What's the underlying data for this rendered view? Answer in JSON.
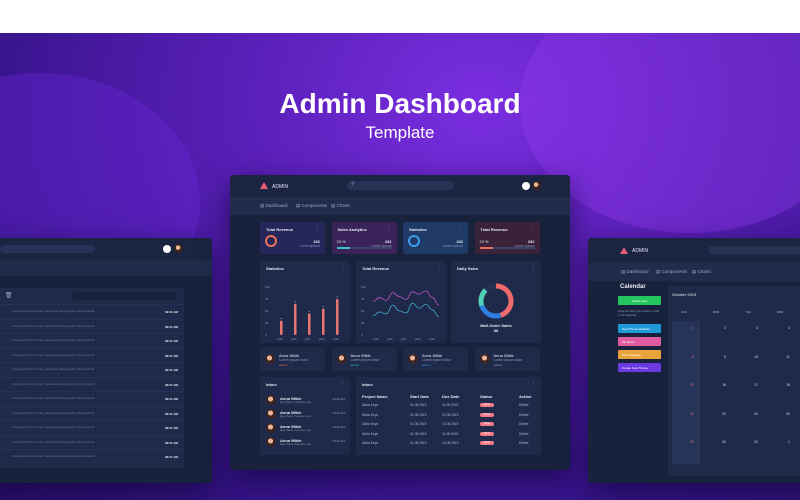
{
  "hero": {
    "title": "Admin Dashboard",
    "subtitle": "Template"
  },
  "app": {
    "logo": "ADMIN",
    "nav": [
      "Dashboard",
      "Components",
      "Charts"
    ]
  },
  "stats": [
    {
      "title": "Total Revenue",
      "value": "232",
      "sub": "Lorem ipsum",
      "color": "#e8735a",
      "bg": "#26265a",
      "kind": "ring"
    },
    {
      "title": "Sales Analytics",
      "value": "232",
      "sub": "Lorem ipsum",
      "percent": "23 %",
      "color": "#3ec1c9",
      "bg": "#3a2358",
      "kind": "bar"
    },
    {
      "title": "Statistics",
      "value": "232",
      "sub": "Lorem ipsum",
      "color": "#3a9be8",
      "bg": "#1f3a66",
      "kind": "ring"
    },
    {
      "title": "Total Revenue",
      "value": "232",
      "sub": "Lorem ipsum",
      "percent": "23 %",
      "color": "#e8735a",
      "bg": "#3a2238",
      "kind": "bar"
    }
  ],
  "charts": {
    "statistics": {
      "title": "Statistics",
      "type": "bar",
      "yticks": [
        "100",
        "75",
        "50",
        "25",
        "0"
      ],
      "categories": [
        "2015",
        "2016",
        "2017",
        "2018",
        "2019"
      ],
      "values": [
        30,
        65,
        45,
        55,
        75
      ],
      "color": "#e8756f"
    },
    "revenue": {
      "title": "Total Revenue",
      "type": "line",
      "yticks": [
        "100",
        "75",
        "50",
        "25",
        "0"
      ],
      "categories": [
        "2015",
        "2016",
        "2017",
        "2018",
        "2019"
      ],
      "series": [
        {
          "values": [
            70,
            78,
            72,
            88,
            80,
            74,
            90,
            85,
            92,
            78,
            62
          ],
          "color": "#b557c8"
        },
        {
          "values": [
            40,
            48,
            44,
            62,
            50,
            46,
            66,
            56,
            64,
            52,
            38
          ],
          "color": "#3ea6c9"
        }
      ]
    },
    "daily": {
      "title": "Daily Sales",
      "type": "pie",
      "label": "Mail-Order Sales",
      "value": "88",
      "segments": [
        {
          "value": 45,
          "color": "#ef6b6b"
        },
        {
          "value": 25,
          "color": "#2f7ee0"
        },
        {
          "value": 18,
          "color": "#4fd1b8"
        },
        {
          "value": 12,
          "color": "#243055"
        }
      ]
    }
  },
  "profiles": [
    {
      "name": "Anna Wikle",
      "sub": "Lorem ipsum dolor",
      "tag": "Admin",
      "tagColor": "#e8735a"
    },
    {
      "name": "Anna Wikle",
      "sub": "Lorem ipsum dolor",
      "tag": "Admin",
      "tagColor": "#3ec1c9"
    },
    {
      "name": "Anna Wikle",
      "sub": "Lorem ipsum dolor",
      "tag": "Admin",
      "tagColor": "#3a9be8"
    },
    {
      "name": "Anna Wikle",
      "sub": "Lorem ipsum dolor",
      "tag": "Admin",
      "tagColor": "#9aa6c6"
    }
  ],
  "inbox": {
    "title": "Inbox",
    "items": [
      {
        "name": "Anna Wikle",
        "sub": "Hey there, how are you",
        "time": "10:32 AM"
      },
      {
        "name": "Anna Wikle",
        "sub": "Hey there, how are you",
        "time": "10:32 AM"
      },
      {
        "name": "Anna Wikle",
        "sub": "Hey there, how are you",
        "time": "10:32 AM"
      },
      {
        "name": "Anna Wikle",
        "sub": "Hey there, how are you",
        "time": "10:32 AM"
      }
    ]
  },
  "table": {
    "title": "Inbox",
    "columns": [
      "Project Name",
      "Start Date",
      "Due Date",
      "Status",
      "Action"
    ],
    "rows": [
      [
        "Alicia Keys",
        "01.08.2019",
        "11.08.2019",
        "Done",
        "Delete"
      ],
      [
        "Alicia Keys",
        "01.08.2019",
        "12.08.2019",
        "Done",
        "Delete"
      ],
      [
        "Alicia Keys",
        "01.08.2019",
        "13.08.2019",
        "Done",
        "Delete"
      ],
      [
        "Alicia Keys",
        "01.08.2019",
        "11.08.2019",
        "Done",
        "Delete"
      ],
      [
        "Alicia Keys",
        "01.08.2019",
        "13.08.2019",
        "Done",
        "Delete"
      ]
    ]
  },
  "mail": {
    "rows": [
      "Lorem ipsum dolor sit amet, consectetur adipiscing elit, sed do eiusmod...",
      "Lorem ipsum dolor sit amet, consectetur adipiscing elit, sed do eiusmod...",
      "Lorem ipsum dolor sit amet, consectetur adipiscing elit, sed do eiusmod...",
      "Lorem ipsum dolor sit amet, consectetur adipiscing elit, sed do eiusmod...",
      "Lorem ipsum dolor sit amet, consectetur adipiscing elit, sed do eiusmod...",
      "Lorem ipsum dolor sit amet, consectetur adipiscing elit, sed do eiusmod...",
      "Lorem ipsum dolor sit amet, consectetur adipiscing elit, sed do eiusmod...",
      "Lorem ipsum dolor sit amet, consectetur adipiscing elit, sed do eiusmod...",
      "Lorem ipsum dolor sit amet, consectetur adipiscing elit, sed do eiusmod...",
      "Lorem ipsum dolor sit amet, consectetur adipiscing elit, sed do eiusmod...",
      "Lorem ipsum dolor sit amet, consectetur adipiscing elit, sed do eiusmod..."
    ],
    "time": "09:31 AM"
  },
  "calendar": {
    "title": "Calendar",
    "button": "Create New",
    "hint": "Drag and drop your event or click in the calendar",
    "events": [
      {
        "label": "New Theme Release",
        "color": "#1e9ad6"
      },
      {
        "label": "My Event",
        "color": "#e05aa0"
      },
      {
        "label": "Meet Manager",
        "color": "#e8a33a"
      },
      {
        "label": "Create New Theme",
        "color": "#6a3ae0"
      }
    ],
    "month": "October 2019",
    "days": [
      "SUN",
      "MON",
      "TUE",
      "WED",
      "THU"
    ],
    "weeks": [
      [
        "1",
        "2",
        "3",
        "4",
        "5"
      ],
      [
        "8",
        "9",
        "10",
        "11",
        "12"
      ],
      [
        "15",
        "16",
        "17",
        "18",
        "19"
      ],
      [
        "22",
        "23",
        "24",
        "25",
        "26"
      ],
      [
        "29",
        "30",
        "31",
        "1",
        "2"
      ]
    ]
  }
}
